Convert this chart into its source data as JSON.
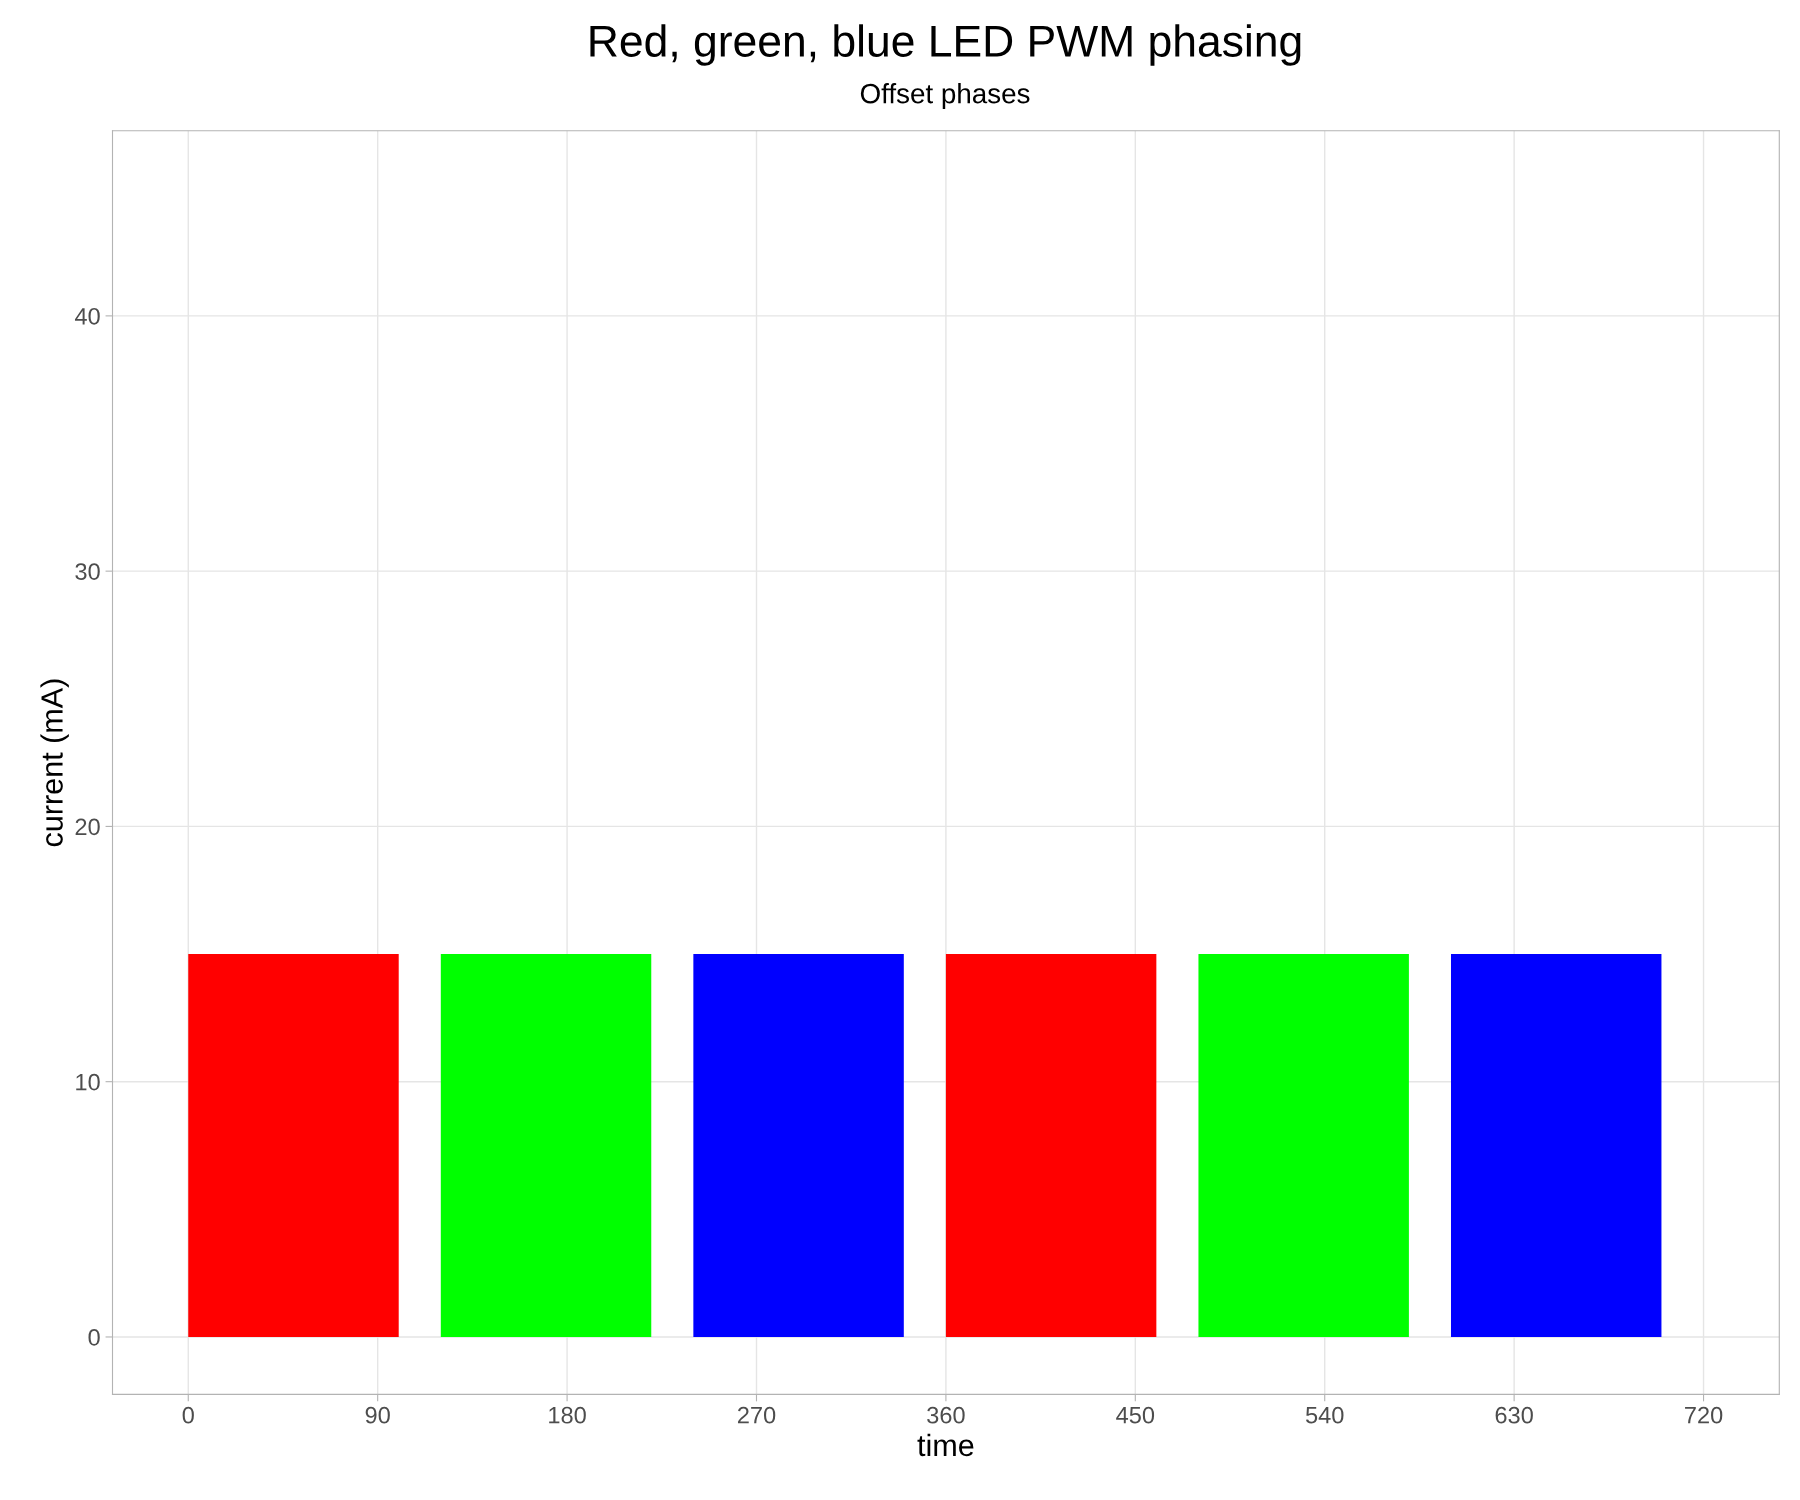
{
  "chart_data": {
    "type": "area",
    "title": "Red, green, blue LED PWM phasing",
    "subtitle": "Offset phases",
    "xlabel": "time",
    "ylabel": "current (mA)",
    "series": [
      {
        "color": "#ff0000",
        "x": [
          0,
          100,
          230,
          360,
          460
        ],
        "values": [
          15,
          15,
          null,
          15,
          15
        ]
      },
      {
        "color": "#00ff00",
        "x": [
          120,
          220,
          350,
          480,
          580
        ],
        "values": [
          15,
          15,
          null,
          15,
          15
        ]
      },
      {
        "color": "#0000ff",
        "x": [
          240,
          340,
          470,
          600,
          700
        ],
        "values": [
          15,
          15,
          null,
          15,
          15
        ]
      }
    ],
    "xlim": [
      -36,
      756
    ],
    "xticks": [
      0,
      90,
      180,
      270,
      360,
      450,
      540,
      630,
      720
    ],
    "ylim": [
      -2.25,
      47.25
    ],
    "yticks": [
      0,
      10,
      20,
      30,
      40
    ],
    "grid": true,
    "legend": false
  }
}
